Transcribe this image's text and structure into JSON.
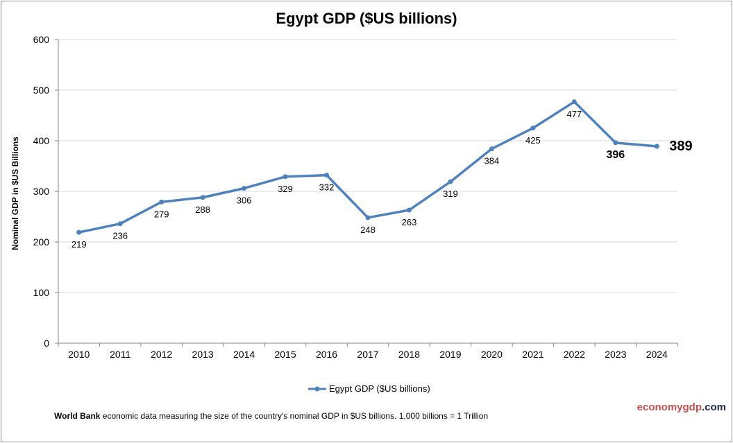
{
  "chart_data": {
    "type": "line",
    "title": "Egypt GDP ($US billions)",
    "ylabel": "Nominal GDP in $US Billions",
    "xlabel": "",
    "ylim": [
      0,
      600
    ],
    "yticks": [
      0,
      100,
      200,
      300,
      400,
      500,
      600
    ],
    "grid": true,
    "legend_position": "bottom-center",
    "categories": [
      "2010",
      "2011",
      "2012",
      "2013",
      "2014",
      "2015",
      "2016",
      "2017",
      "2018",
      "2019",
      "2020",
      "2021",
      "2022",
      "2023",
      "2024"
    ],
    "series": [
      {
        "name": "Egypt GDP ($US billions)",
        "color": "#4f81bd",
        "values": [
          219,
          236,
          279,
          288,
          306,
          329,
          332,
          248,
          263,
          319,
          384,
          425,
          477,
          396,
          389
        ]
      }
    ],
    "highlighted_labels": [
      "2023",
      "2024"
    ]
  },
  "footnote": {
    "source": "World Bank",
    "text": "economic data  measuring the size of the country's nominal GDP in $US billions. 1,000 billions = 1 Trillion"
  },
  "brand": {
    "part1": "economygdp",
    "part2": ".com",
    "color1": "#c0504d",
    "color2": "#1f2a44"
  }
}
